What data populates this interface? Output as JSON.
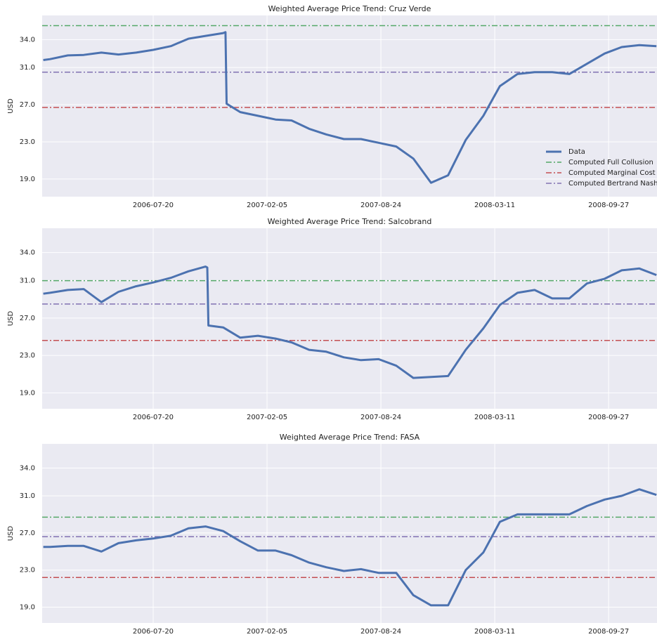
{
  "chart_data": [
    {
      "type": "line",
      "title": "Weighted Average Price Trend: Cruz Verde",
      "ylabel": "USD",
      "x": [
        "2006-01-08",
        "2006-01-20",
        "2006-02-20",
        "2006-03-20",
        "2006-04-20",
        "2006-05-20",
        "2006-06-20",
        "2006-07-20",
        "2006-08-20",
        "2006-09-20",
        "2006-10-20",
        "2006-11-20",
        "2006-11-24",
        "2006-11-26",
        "2006-12-20",
        "2007-01-20",
        "2007-02-20",
        "2007-03-20",
        "2007-04-20",
        "2007-05-20",
        "2007-06-20",
        "2007-07-20",
        "2007-08-20",
        "2007-09-20",
        "2007-10-20",
        "2007-11-20",
        "2007-12-20",
        "2008-01-20",
        "2008-02-20",
        "2008-03-20",
        "2008-04-20",
        "2008-05-20",
        "2008-06-20",
        "2008-07-20",
        "2008-08-20",
        "2008-09-20",
        "2008-10-20",
        "2008-11-20",
        "2008-12-20"
      ],
      "series": [
        {
          "name": "Data",
          "color": "#4c72b0",
          "values": [
            31.8,
            31.9,
            32.3,
            32.35,
            32.6,
            32.4,
            32.6,
            32.9,
            33.3,
            34.1,
            34.4,
            34.7,
            34.8,
            27.1,
            26.2,
            25.8,
            25.4,
            25.3,
            24.4,
            23.8,
            23.3,
            23.3,
            22.9,
            22.5,
            21.2,
            18.6,
            19.4,
            23.2,
            25.8,
            29.0,
            30.3,
            30.5,
            30.5,
            30.3,
            31.4,
            32.5,
            33.2,
            33.4,
            33.3
          ]
        }
      ],
      "hlines": [
        {
          "name": "Computed Full Collusion",
          "color": "#55a868",
          "value": 35.5
        },
        {
          "name": "Computed Marginal Cost",
          "color": "#c44e52",
          "value": 26.7
        },
        {
          "name": "Computed Bertrand Nash",
          "color": "#8172b2",
          "value": 30.5
        }
      ],
      "xlim": [
        "2006-01-06",
        "2008-12-21"
      ],
      "xticks": [
        "2006-07-20",
        "2007-02-05",
        "2007-08-24",
        "2008-03-11",
        "2008-09-27"
      ],
      "ylim": [
        17.1,
        36.6
      ],
      "yticks": [
        {
          "value": 19,
          "label": "19.0"
        },
        {
          "value": 23,
          "label": "23.0"
        },
        {
          "value": 27,
          "label": "27.0"
        },
        {
          "value": 31,
          "label": "31.0"
        },
        {
          "value": 34,
          "label": "34.0"
        }
      ],
      "grid": true,
      "legend": "lower right"
    },
    {
      "type": "line",
      "title": "Weighted Average Price Trend: Salcobrand",
      "ylabel": "USD",
      "x": [
        "2006-01-08",
        "2006-01-20",
        "2006-02-20",
        "2006-03-20",
        "2006-04-20",
        "2006-05-20",
        "2006-06-20",
        "2006-07-20",
        "2006-08-20",
        "2006-09-20",
        "2006-10-20",
        "2006-10-23",
        "2006-10-25",
        "2006-11-20",
        "2006-12-20",
        "2007-01-20",
        "2007-02-20",
        "2007-03-20",
        "2007-04-20",
        "2007-05-20",
        "2007-06-20",
        "2007-07-20",
        "2007-08-20",
        "2007-09-20",
        "2007-10-20",
        "2007-11-20",
        "2007-12-20",
        "2008-01-20",
        "2008-02-20",
        "2008-03-20",
        "2008-04-20",
        "2008-05-20",
        "2008-06-20",
        "2008-07-20",
        "2008-08-20",
        "2008-09-20",
        "2008-10-20",
        "2008-11-20",
        "2008-12-20"
      ],
      "series": [
        {
          "color": "#4c72b0",
          "values": [
            29.6,
            29.7,
            30.0,
            30.1,
            28.7,
            29.8,
            30.4,
            30.8,
            31.3,
            32.0,
            32.5,
            32.4,
            26.2,
            26.0,
            24.9,
            25.1,
            24.8,
            24.4,
            23.6,
            23.4,
            22.8,
            22.5,
            22.6,
            21.9,
            20.6,
            20.7,
            20.8,
            23.6,
            25.9,
            28.4,
            29.7,
            30.0,
            29.1,
            29.1,
            30.7,
            31.2,
            32.1,
            32.3,
            31.6
          ]
        }
      ],
      "hlines": [
        {
          "color": "#55a868",
          "value": 31.0
        },
        {
          "color": "#c44e52",
          "value": 24.6
        },
        {
          "color": "#8172b2",
          "value": 28.5
        }
      ],
      "xlim": [
        "2006-01-06",
        "2008-12-21"
      ],
      "xticks": [
        "2006-07-20",
        "2007-02-05",
        "2007-08-24",
        "2008-03-11",
        "2008-09-27"
      ],
      "ylim": [
        17.3,
        36.6
      ],
      "yticks": [
        {
          "value": 19,
          "label": "19.0"
        },
        {
          "value": 23,
          "label": "23.0"
        },
        {
          "value": 27,
          "label": "27.0"
        },
        {
          "value": 31,
          "label": "31.0"
        },
        {
          "value": 34,
          "label": "34.0"
        }
      ],
      "grid": true
    },
    {
      "type": "line",
      "title": "Weighted Average Price Trend: FASA",
      "ylabel": "USD",
      "x": [
        "2006-01-08",
        "2006-01-20",
        "2006-02-20",
        "2006-03-20",
        "2006-04-20",
        "2006-05-20",
        "2006-06-20",
        "2006-07-20",
        "2006-08-20",
        "2006-09-20",
        "2006-10-20",
        "2006-11-20",
        "2006-12-20",
        "2007-01-20",
        "2007-02-20",
        "2007-03-20",
        "2007-04-20",
        "2007-05-20",
        "2007-06-20",
        "2007-07-20",
        "2007-08-20",
        "2007-09-20",
        "2007-10-20",
        "2007-11-20",
        "2007-12-20",
        "2008-01-20",
        "2008-02-20",
        "2008-03-20",
        "2008-04-20",
        "2008-05-20",
        "2008-06-20",
        "2008-07-20",
        "2008-08-20",
        "2008-09-20",
        "2008-10-20",
        "2008-11-20",
        "2008-12-20"
      ],
      "series": [
        {
          "color": "#4c72b0",
          "values": [
            25.5,
            25.5,
            25.6,
            25.6,
            25.0,
            25.9,
            26.2,
            26.4,
            26.7,
            27.5,
            27.7,
            27.2,
            26.1,
            25.1,
            25.1,
            24.6,
            23.8,
            23.3,
            22.9,
            23.1,
            22.7,
            22.7,
            20.3,
            19.2,
            19.2,
            23.0,
            24.9,
            28.2,
            29.0,
            29.0,
            29.0,
            29.0,
            29.9,
            30.6,
            31.0,
            31.7,
            31.1
          ]
        }
      ],
      "hlines": [
        {
          "color": "#55a868",
          "value": 28.7
        },
        {
          "color": "#c44e52",
          "value": 22.2
        },
        {
          "color": "#8172b2",
          "value": 26.6
        }
      ],
      "xlim": [
        "2006-01-06",
        "2008-12-21"
      ],
      "xticks": [
        "2006-07-20",
        "2007-02-05",
        "2007-08-24",
        "2008-03-11",
        "2008-09-27"
      ],
      "ylim": [
        17.3,
        36.6
      ],
      "yticks": [
        {
          "value": 19,
          "label": "19.0"
        },
        {
          "value": 23,
          "label": "23.0"
        },
        {
          "value": 27,
          "label": "27.0"
        },
        {
          "value": 31,
          "label": "31.0"
        },
        {
          "value": 34,
          "label": "34.0"
        }
      ],
      "grid": true
    }
  ]
}
